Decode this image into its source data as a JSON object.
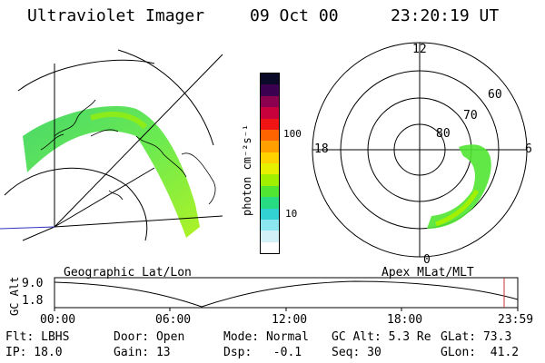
{
  "header": {
    "title": "Ultraviolet Imager",
    "date": "09 Oct 00",
    "time": "23:20:19 UT"
  },
  "colorbar": {
    "unit_label": "photon cm⁻²s⁻¹",
    "ticks": [
      "100",
      "10"
    ],
    "colors": [
      "#0a0a28",
      "#3c0050",
      "#8c0050",
      "#c8003c",
      "#f01414",
      "#ff6400",
      "#ffa000",
      "#ffd200",
      "#e6f000",
      "#a0f000",
      "#50e632",
      "#28dc82",
      "#32d2d2",
      "#8ce6f0",
      "#d2f0f8",
      "#ffffff"
    ]
  },
  "polar": {
    "hour_labels": {
      "top": "12",
      "left": "18",
      "right": "6",
      "bottom": "0"
    },
    "lat_labels": [
      "60",
      "70",
      "80"
    ]
  },
  "timeline": {
    "y_axis_label": "GC Alt",
    "y_ticks": [
      "9.0",
      "1.8"
    ],
    "left_title": "Geographic Lat/Lon",
    "right_title": "Apex MLat/MLT",
    "x_ticks": [
      "00:00",
      "06:00",
      "12:00",
      "18:00",
      "23:59"
    ],
    "marker_color": "#c83232"
  },
  "info": {
    "row1": [
      "Flt: LBHS",
      "Door: Open",
      "Mode: Normal",
      "GC Alt: 5.3 Re",
      "GLat: 73.3"
    ],
    "row2": [
      "IP: 18.0",
      "Gain: 13",
      "Dsp:   -0.1",
      "Seq: 30",
      "GLon:  41.2"
    ]
  }
}
